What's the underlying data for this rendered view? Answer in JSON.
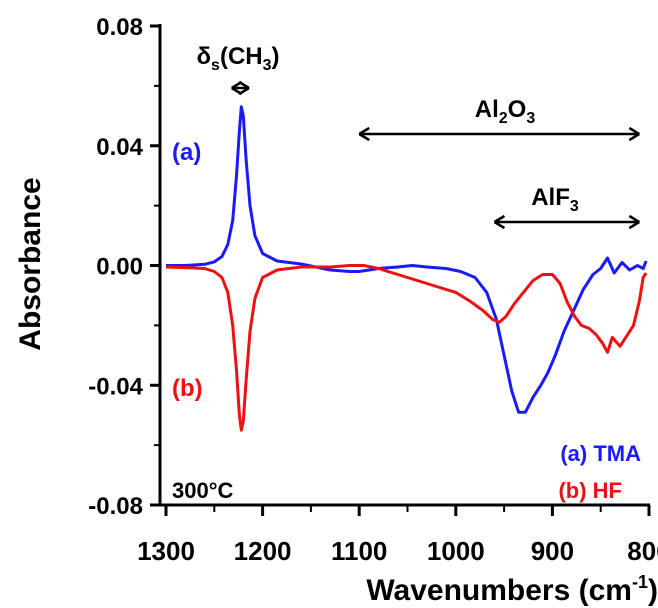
{
  "chart_data": {
    "type": "line",
    "title": "",
    "xlabel_main": "Wavenumbers (cm",
    "xlabel_sup": "-1",
    "xlabel_close": ")",
    "ylabel": "Absorbance",
    "xlim": [
      1300,
      800
    ],
    "ylim": [
      -0.08,
      0.08
    ],
    "x_ticks": [
      1300,
      1200,
      1100,
      1000,
      900,
      800
    ],
    "x_tick_labels": [
      "1300",
      "1200",
      "1100",
      "1000",
      "900",
      "800"
    ],
    "y_ticks": [
      0.08,
      0.04,
      0.0,
      -0.04,
      -0.08
    ],
    "y_tick_labels": [
      "0.08",
      "0.04",
      "0.00",
      "-0.04",
      "-0.08"
    ],
    "grid": false,
    "legend_position": "bottom-right",
    "series": [
      {
        "name": "(a) TMA",
        "color": "#1a1aff",
        "points": [
          [
            1300,
            0.0
          ],
          [
            1280,
            0.0
          ],
          [
            1260,
            0.0004
          ],
          [
            1250,
            0.0012
          ],
          [
            1242,
            0.003
          ],
          [
            1236,
            0.007
          ],
          [
            1231,
            0.015
          ],
          [
            1227,
            0.03
          ],
          [
            1224,
            0.045
          ],
          [
            1222,
            0.053
          ],
          [
            1220,
            0.05
          ],
          [
            1217,
            0.035
          ],
          [
            1213,
            0.02
          ],
          [
            1208,
            0.01
          ],
          [
            1200,
            0.004
          ],
          [
            1185,
            0.0015
          ],
          [
            1160,
            0.0005
          ],
          [
            1130,
            -0.0015
          ],
          [
            1110,
            -0.002
          ],
          [
            1100,
            -0.002
          ],
          [
            1080,
            -0.001
          ],
          [
            1060,
            -0.0005
          ],
          [
            1045,
            0.0
          ],
          [
            1030,
            -0.0005
          ],
          [
            1010,
            -0.001
          ],
          [
            995,
            -0.002
          ],
          [
            980,
            -0.004
          ],
          [
            968,
            -0.009
          ],
          [
            958,
            -0.018
          ],
          [
            950,
            -0.03
          ],
          [
            942,
            -0.042
          ],
          [
            935,
            -0.049
          ],
          [
            928,
            -0.049
          ],
          [
            920,
            -0.044
          ],
          [
            912,
            -0.04
          ],
          [
            905,
            -0.036
          ],
          [
            897,
            -0.03
          ],
          [
            888,
            -0.022
          ],
          [
            878,
            -0.015
          ],
          [
            868,
            -0.008
          ],
          [
            858,
            -0.003
          ],
          [
            850,
            -0.001
          ],
          [
            843,
            0.0025
          ],
          [
            836,
            -0.0025
          ],
          [
            828,
            0.001
          ],
          [
            820,
            -0.0015
          ],
          [
            812,
            0.0
          ],
          [
            806,
            -0.001
          ],
          [
            803,
            0.0015
          ]
        ]
      },
      {
        "name": "(b) HF",
        "color": "#ee1111",
        "points": [
          [
            1300,
            -0.0005
          ],
          [
            1280,
            -0.0007
          ],
          [
            1260,
            -0.001
          ],
          [
            1250,
            -0.002
          ],
          [
            1242,
            -0.004
          ],
          [
            1236,
            -0.009
          ],
          [
            1231,
            -0.02
          ],
          [
            1227,
            -0.035
          ],
          [
            1224,
            -0.05
          ],
          [
            1222,
            -0.055
          ],
          [
            1220,
            -0.052
          ],
          [
            1217,
            -0.038
          ],
          [
            1213,
            -0.022
          ],
          [
            1208,
            -0.011
          ],
          [
            1200,
            -0.004
          ],
          [
            1185,
            -0.0015
          ],
          [
            1160,
            -0.0005
          ],
          [
            1130,
            -0.0005
          ],
          [
            1110,
            0.0
          ],
          [
            1095,
            0.0
          ],
          [
            1080,
            -0.001
          ],
          [
            1060,
            -0.003
          ],
          [
            1040,
            -0.005
          ],
          [
            1020,
            -0.007
          ],
          [
            1000,
            -0.009
          ],
          [
            985,
            -0.012
          ],
          [
            972,
            -0.015
          ],
          [
            962,
            -0.018
          ],
          [
            955,
            -0.019
          ],
          [
            948,
            -0.017
          ],
          [
            940,
            -0.013
          ],
          [
            930,
            -0.009
          ],
          [
            920,
            -0.005
          ],
          [
            910,
            -0.003
          ],
          [
            900,
            -0.003
          ],
          [
            892,
            -0.006
          ],
          [
            885,
            -0.012
          ],
          [
            877,
            -0.017
          ],
          [
            870,
            -0.02
          ],
          [
            862,
            -0.021
          ],
          [
            855,
            -0.023
          ],
          [
            848,
            -0.026
          ],
          [
            843,
            -0.029
          ],
          [
            838,
            -0.024
          ],
          [
            830,
            -0.027
          ],
          [
            822,
            -0.023
          ],
          [
            816,
            -0.02
          ],
          [
            810,
            -0.012
          ],
          [
            806,
            -0.004
          ],
          [
            803,
            -0.0025
          ]
        ]
      }
    ],
    "annotations": [
      {
        "text": "δ",
        "sub": "s",
        "after": "(CH",
        "sub2": "3",
        "close": ")",
        "arrow_x": [
          1232,
          1214
        ]
      },
      {
        "text": "Al",
        "sub": "2",
        "after": "O",
        "sub2": "3",
        "close": "",
        "arrow_x": [
          1100,
          810
        ]
      },
      {
        "text": "AlF",
        "sub": "3",
        "after": "",
        "sub2": "",
        "close": "",
        "arrow_x": [
          960,
          810
        ]
      }
    ],
    "trace_labels": [
      {
        "text": "(a)",
        "color": "#1a1aff"
      },
      {
        "text": "(b)",
        "color": "#ee1111"
      }
    ],
    "temperature_label": "300°C"
  }
}
